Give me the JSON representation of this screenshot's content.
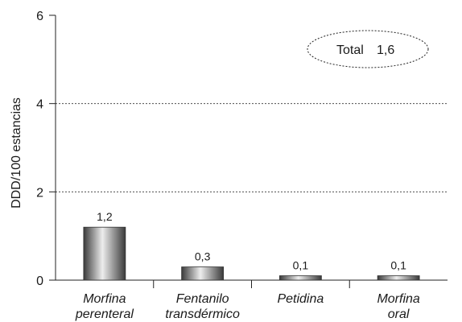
{
  "chart_data": {
    "type": "bar",
    "categories": [
      [
        "Morfina",
        "perenteral"
      ],
      [
        "Fentanilo",
        "transdérmico"
      ],
      [
        "Petidina"
      ],
      [
        "Morfina",
        "oral"
      ]
    ],
    "values": [
      1.2,
      0.3,
      0.1,
      0.1
    ],
    "value_labels": [
      "1,2",
      "0,3",
      "0,1",
      "0,1"
    ],
    "ylabel": "DDD/100 estancias",
    "ylim": [
      0,
      6
    ],
    "yticks": [
      0,
      2,
      4,
      6
    ],
    "gridlines_at": [
      2,
      4
    ],
    "grid": "dashed horizontal",
    "annotation": {
      "label": "Total",
      "value": "1,6"
    },
    "colors": {
      "bar_gradient": [
        "#3a3a3a",
        "#ededed",
        "#3a3a3a"
      ],
      "axis": "#222222"
    }
  }
}
